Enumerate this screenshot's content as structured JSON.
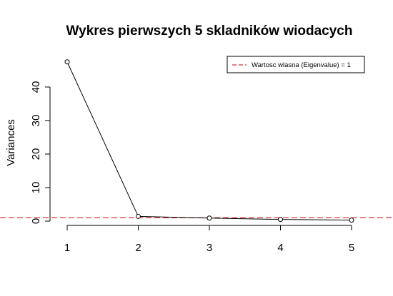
{
  "chart_data": {
    "type": "line",
    "title": "Wykres pierwszych 5 skladników wiodacych",
    "xlabel": "",
    "ylabel": "Variances",
    "x": [
      1,
      2,
      3,
      4,
      5
    ],
    "values": [
      47.5,
      1.4,
      0.9,
      0.5,
      0.3
    ],
    "xlim": [
      1,
      5
    ],
    "ylim": [
      0,
      50
    ],
    "xticks": [
      1,
      2,
      3,
      4,
      5
    ],
    "yticks": [
      0,
      10,
      20,
      30,
      40
    ],
    "reference_line": {
      "y": 1,
      "label": "Wartosc wlasna (Eigenvalue) = 1",
      "color": "#cc0000",
      "style": "dashed"
    },
    "legend": {
      "position": "top-right",
      "entries": [
        "Wartosc wlasna (Eigenvalue) = 1"
      ]
    },
    "grid": false
  }
}
